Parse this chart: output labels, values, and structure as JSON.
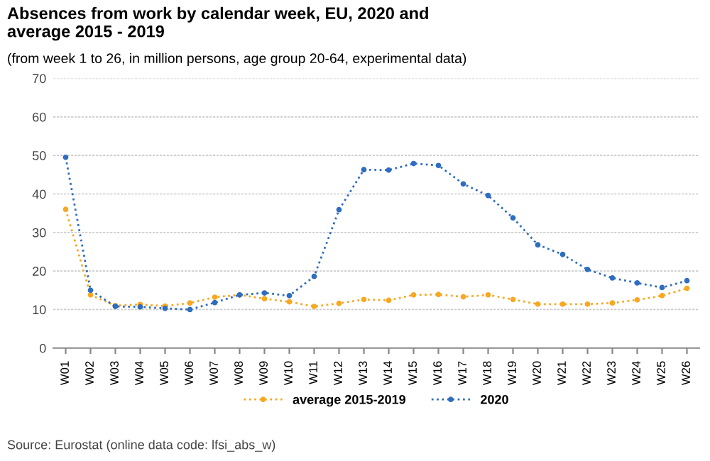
{
  "chart_data": {
    "type": "line",
    "title": "Absences from work by calendar week, EU, 2020 and\naverage 2015 - 2019",
    "subtitle": "(from week 1 to 26, in million persons, age group 20-64, experimental data)",
    "categories": [
      "W01",
      "W02",
      "W03",
      "W04",
      "W05",
      "W06",
      "W07",
      "W08",
      "W09",
      "W10",
      "W11",
      "W12",
      "W13",
      "W14",
      "W15",
      "W16",
      "W17",
      "W18",
      "W19",
      "W20",
      "W21",
      "W22",
      "W23",
      "W24",
      "W25",
      "W26"
    ],
    "series": [
      {
        "name": "average 2015-2019",
        "color": "#f7a823",
        "values": [
          36,
          13.8,
          11.0,
          11.3,
          10.9,
          11.7,
          13.2,
          13.8,
          12.8,
          12.0,
          10.8,
          11.6,
          12.6,
          12.4,
          13.8,
          13.9,
          13.3,
          13.8,
          12.6,
          11.4,
          11.4,
          11.4,
          11.7,
          12.5,
          13.6,
          15.5
        ]
      },
      {
        "name": "2020",
        "color": "#2f6dbf",
        "values": [
          49.5,
          15,
          10.8,
          10.7,
          10.3,
          10.0,
          11.8,
          13.8,
          14.3,
          13.6,
          18.6,
          35.9,
          46.3,
          46.2,
          47.9,
          47.4,
          42.6,
          39.6,
          33.8,
          26.8,
          24.3,
          20.4,
          18.2,
          16.9,
          15.7,
          17.5
        ]
      }
    ],
    "ylim": [
      0,
      70
    ],
    "yticks": [
      0,
      10,
      20,
      30,
      40,
      50,
      60,
      70
    ],
    "grid": "y",
    "legend": "bottom",
    "marker": "circle",
    "line_style": "dotted",
    "annotations": [
      "Source: Eurostat (online data code: lfsi_abs_w)"
    ]
  }
}
